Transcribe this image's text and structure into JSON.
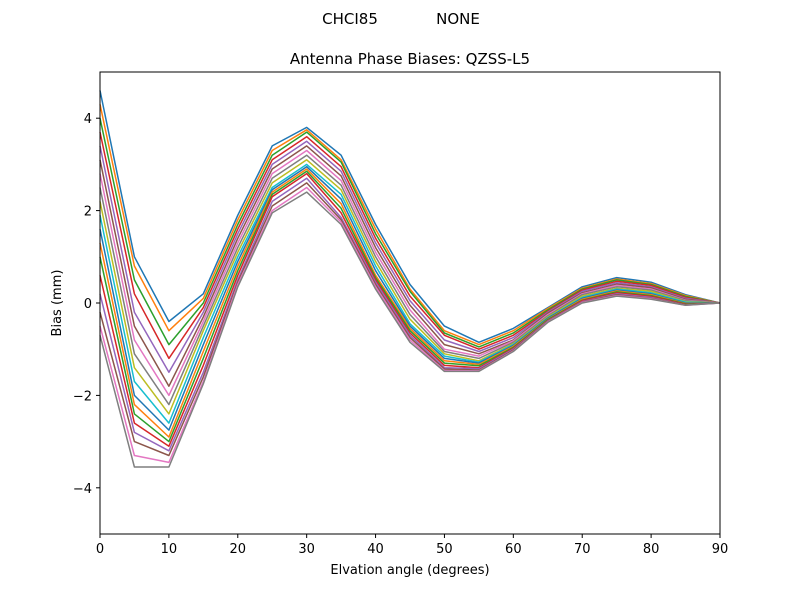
{
  "figure": {
    "station": "CHCI85",
    "radome": "NONE"
  },
  "chart_data": {
    "type": "line",
    "title": "Antenna Phase Biases: QZSS-L5",
    "xlabel": "Elvation angle (degrees)",
    "ylabel": "Bias (mm)",
    "xlim": [
      0,
      90
    ],
    "ylim": [
      -5,
      5
    ],
    "xticks": [
      0,
      10,
      20,
      30,
      40,
      50,
      60,
      70,
      80,
      90
    ],
    "yticks": [
      -4,
      -2,
      0,
      2,
      4
    ],
    "grid": false,
    "legend": "none",
    "x": [
      0,
      5,
      10,
      15,
      20,
      25,
      30,
      35,
      40,
      45,
      50,
      55,
      60,
      65,
      70,
      75,
      80,
      85,
      90
    ],
    "colors": [
      "#1f77b4",
      "#ff7f0e",
      "#2ca02c",
      "#d62728",
      "#9467bd",
      "#8c564b",
      "#e377c2",
      "#7f7f7f",
      "#bcbd22",
      "#17becf"
    ],
    "series": [
      {
        "values": [
          4.6,
          1.0,
          -0.4,
          0.2,
          1.9,
          3.4,
          3.8,
          3.2,
          1.7,
          0.4,
          -0.5,
          -0.85,
          -0.55,
          -0.1,
          0.35,
          0.55,
          0.45,
          0.18,
          0.0
        ]
      },
      {
        "values": [
          4.3,
          0.8,
          -0.6,
          0.1,
          1.8,
          3.3,
          3.75,
          3.1,
          1.6,
          0.3,
          -0.6,
          -0.9,
          -0.6,
          -0.12,
          0.32,
          0.52,
          0.42,
          0.16,
          0.0
        ]
      },
      {
        "values": [
          4.0,
          0.5,
          -0.9,
          0.0,
          1.7,
          3.2,
          3.7,
          3.05,
          1.5,
          0.25,
          -0.65,
          -0.95,
          -0.65,
          -0.15,
          0.3,
          0.5,
          0.4,
          0.14,
          0.0
        ]
      },
      {
        "values": [
          3.7,
          0.2,
          -1.2,
          -0.1,
          1.6,
          3.1,
          3.6,
          2.95,
          1.4,
          0.15,
          -0.7,
          -1.0,
          -0.7,
          -0.18,
          0.28,
          0.47,
          0.38,
          0.12,
          0.0
        ]
      },
      {
        "values": [
          3.4,
          -0.2,
          -1.5,
          -0.2,
          1.5,
          3.0,
          3.5,
          2.85,
          1.3,
          0.05,
          -0.8,
          -1.05,
          -0.75,
          -0.2,
          0.25,
          0.44,
          0.35,
          0.1,
          0.0
        ]
      },
      {
        "values": [
          3.1,
          -0.5,
          -1.8,
          -0.3,
          1.4,
          2.9,
          3.4,
          2.75,
          1.2,
          -0.05,
          -0.9,
          -1.1,
          -0.8,
          -0.22,
          0.22,
          0.41,
          0.33,
          0.08,
          0.0
        ]
      },
      {
        "values": [
          2.8,
          -0.8,
          -2.0,
          -0.4,
          1.3,
          2.8,
          3.3,
          2.65,
          1.1,
          -0.15,
          -1.0,
          -1.15,
          -0.82,
          -0.25,
          0.2,
          0.38,
          0.3,
          0.06,
          0.0
        ]
      },
      {
        "values": [
          2.5,
          -1.1,
          -2.2,
          -0.5,
          1.2,
          2.7,
          3.2,
          2.55,
          1.0,
          -0.25,
          -1.05,
          -1.2,
          -0.85,
          -0.28,
          0.18,
          0.35,
          0.28,
          0.05,
          0.0
        ]
      },
      {
        "values": [
          2.2,
          -1.4,
          -2.4,
          -0.6,
          1.1,
          2.6,
          3.1,
          2.45,
          0.9,
          -0.35,
          -1.1,
          -1.25,
          -0.88,
          -0.3,
          0.15,
          0.32,
          0.25,
          0.03,
          0.0
        ]
      },
      {
        "values": [
          1.9,
          -1.7,
          -2.6,
          -0.75,
          1.0,
          2.5,
          3.0,
          2.35,
          0.8,
          -0.45,
          -1.15,
          -1.28,
          -0.9,
          -0.32,
          0.12,
          0.3,
          0.22,
          0.02,
          0.0
        ]
      },
      {
        "values": [
          1.6,
          -2.0,
          -2.75,
          -0.9,
          0.9,
          2.45,
          2.95,
          2.25,
          0.7,
          -0.5,
          -1.2,
          -1.3,
          -0.92,
          -0.33,
          0.1,
          0.28,
          0.2,
          0.0,
          0.0
        ]
      },
      {
        "values": [
          1.3,
          -2.2,
          -2.9,
          -1.05,
          0.8,
          2.4,
          2.9,
          2.15,
          0.6,
          -0.55,
          -1.25,
          -1.33,
          -0.94,
          -0.35,
          0.08,
          0.26,
          0.18,
          -0.01,
          0.0
        ]
      },
      {
        "values": [
          1.0,
          -2.4,
          -3.0,
          -1.2,
          0.7,
          2.35,
          2.85,
          2.05,
          0.55,
          -0.6,
          -1.3,
          -1.36,
          -0.96,
          -0.36,
          0.06,
          0.24,
          0.16,
          -0.02,
          0.0
        ]
      },
      {
        "values": [
          0.6,
          -2.6,
          -3.1,
          -1.35,
          0.6,
          2.3,
          2.8,
          1.95,
          0.5,
          -0.65,
          -1.35,
          -1.4,
          -0.98,
          -0.38,
          0.05,
          0.22,
          0.14,
          -0.03,
          0.0
        ]
      },
      {
        "values": [
          0.2,
          -2.8,
          -3.2,
          -1.5,
          0.5,
          2.2,
          2.7,
          1.85,
          0.45,
          -0.7,
          -1.4,
          -1.42,
          -1.0,
          -0.39,
          0.03,
          0.2,
          0.12,
          -0.04,
          0.0
        ]
      },
      {
        "values": [
          -0.2,
          -3.0,
          -3.3,
          -1.6,
          0.45,
          2.1,
          2.6,
          1.8,
          0.4,
          -0.75,
          -1.43,
          -1.45,
          -1.02,
          -0.4,
          0.02,
          0.18,
          0.1,
          -0.04,
          0.0
        ]
      },
      {
        "values": [
          -0.5,
          -3.3,
          -3.45,
          -1.7,
          0.4,
          2.0,
          2.5,
          1.75,
          0.35,
          -0.8,
          -1.46,
          -1.47,
          -1.04,
          -0.41,
          0.01,
          0.16,
          0.09,
          -0.05,
          0.0
        ]
      },
      {
        "values": [
          -0.7,
          -3.55,
          -3.55,
          -1.75,
          0.35,
          1.95,
          2.4,
          1.7,
          0.3,
          -0.85,
          -1.48,
          -1.48,
          -1.05,
          -0.42,
          0.0,
          0.15,
          0.08,
          -0.05,
          0.0
        ]
      }
    ]
  }
}
